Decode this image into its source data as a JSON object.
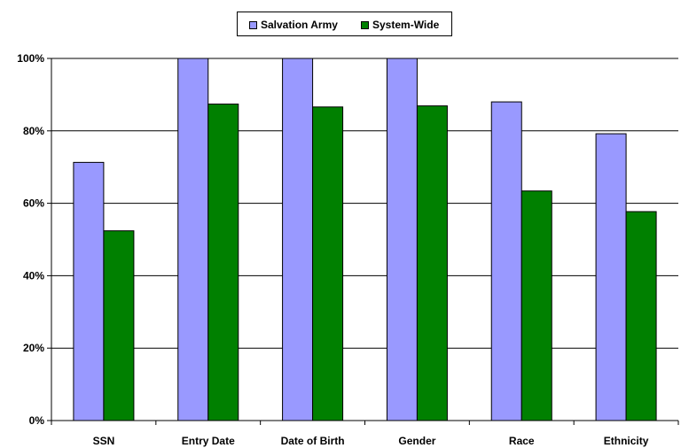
{
  "chart_data": {
    "type": "bar",
    "categories": [
      "SSN",
      "Entry Date",
      "Date of Birth",
      "Gender",
      "Race",
      "Ethnicity"
    ],
    "series": [
      {
        "name": "Salvation Army",
        "values": [
          71.3,
          100,
          100,
          100,
          88.0,
          79.2
        ],
        "color": "#9999ff"
      },
      {
        "name": "System-Wide",
        "values": [
          52.4,
          87.4,
          86.6,
          86.9,
          63.4,
          57.7
        ],
        "color": "#008000"
      }
    ],
    "ylim": [
      0,
      100
    ],
    "yticks": [
      "0%",
      "20%",
      "40%",
      "60%",
      "80%",
      "100%"
    ],
    "ytick_values": [
      0,
      20,
      40,
      60,
      80,
      100
    ],
    "grid": true,
    "legend_position": "top-center",
    "title": "",
    "xlabel": "",
    "ylabel": ""
  }
}
